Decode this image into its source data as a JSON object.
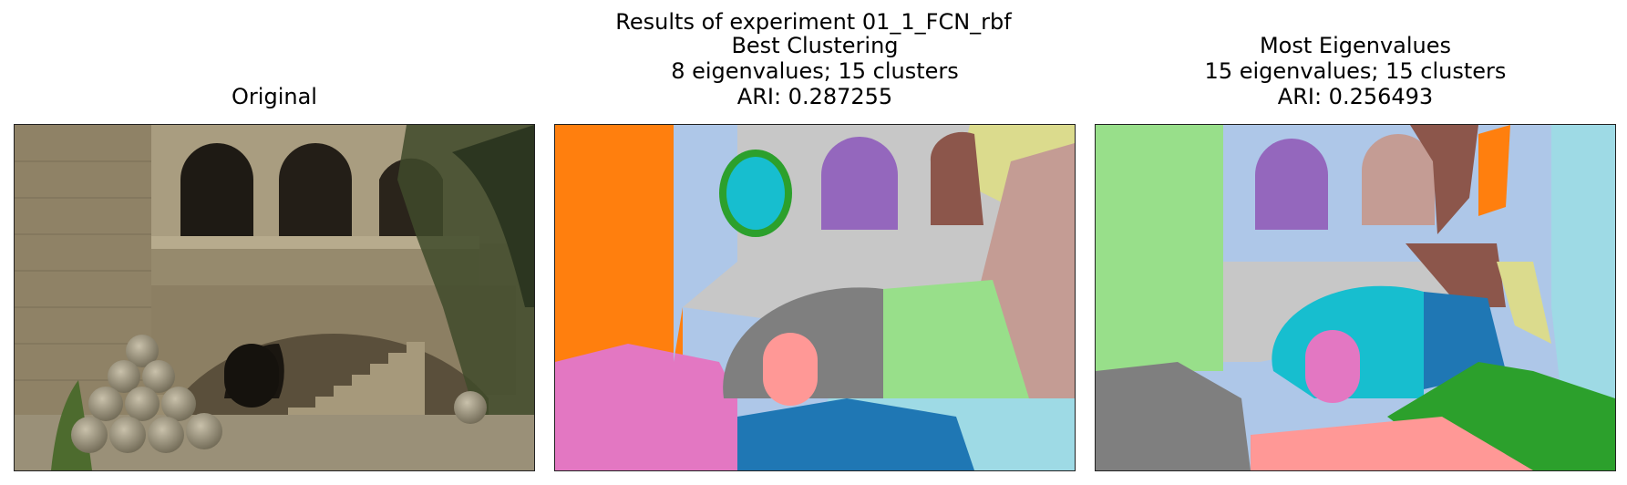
{
  "figure": {
    "suptitle": "Results of experiment 01_1_FCN_rbf"
  },
  "panels": [
    {
      "title_lines": [
        "Original"
      ],
      "image": "photo-courtyard-arches-stone-balls"
    },
    {
      "title_lines": [
        "Best Clustering",
        "8 eigenvalues; 15 clusters",
        "ARI: 0.287255"
      ],
      "image": "segmentation-map-best-clustering"
    },
    {
      "title_lines": [
        "Most Eigenvalues",
        "15 eigenvalues; 15 clusters",
        "ARI: 0.256493"
      ],
      "image": "segmentation-map-most-eigenvalues"
    }
  ],
  "colors": {
    "orange": "#ff7f0e",
    "light_blue": "#aec7e8",
    "blue": "#1f77b4",
    "cyan": "#17becf",
    "light_cyan": "#9edae5",
    "green": "#2ca02c",
    "light_green": "#98df8a",
    "purple": "#9467bd",
    "brown": "#8c564b",
    "tan": "#c49c94",
    "pink": "#e377c2",
    "salmon": "#ff9896",
    "gray": "#7f7f7f",
    "light_gray": "#c7c7c7",
    "olive_light": "#dbdb8d"
  }
}
